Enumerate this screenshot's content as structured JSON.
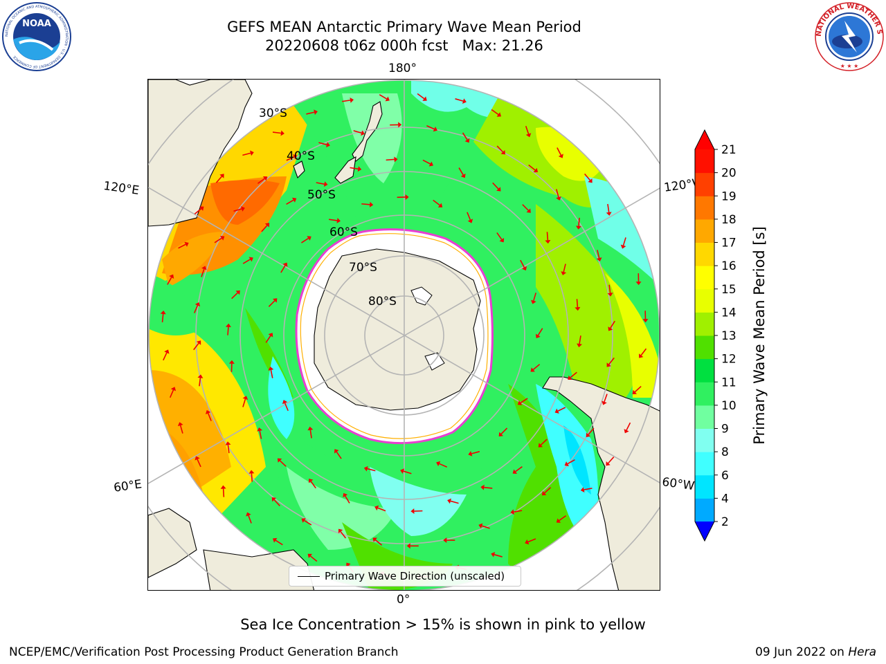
{
  "title": {
    "line1": "GEFS MEAN Antarctic Primary Wave Mean Period",
    "line2": "20220608 t06z 000h fcst   Max: 21.26"
  },
  "logos": {
    "left": "NOAA",
    "left_ring": "NATIONAL OCEANIC AND ATMOSPHERIC ADMINISTRATION · U.S. DEPARTMENT OF COMMERCE",
    "right_ring": "NATIONAL WEATHER SERVICE"
  },
  "map": {
    "projection": "south-polar-stereographic",
    "lon_labels": {
      "top": "180°",
      "bottom": "0°",
      "left_upper": "120°E",
      "left_lower": "60°E",
      "right_upper": "120°W",
      "right_lower": "60°W"
    },
    "lat_labels": [
      "30°S",
      "40°S",
      "50°S",
      "60°S",
      "70°S",
      "80°S"
    ],
    "legend": "Primary Wave Direction (unscaled)",
    "colors": {
      "land": "#efecdc",
      "ice": "#ffffff",
      "ice_edge": "#e83fd1",
      "arrow": "#ee0000",
      "grid": "#b4b4b4"
    }
  },
  "colorbar": {
    "label": "Primary Wave Mean Period [s]",
    "ticks": [
      "2",
      "4",
      "6",
      "8",
      "9",
      "10",
      "11",
      "12",
      "13",
      "14",
      "15",
      "16",
      "17",
      "18",
      "19",
      "20",
      "21"
    ],
    "colors": [
      "#0040ff",
      "#00aaff",
      "#00e5ff",
      "#40ffff",
      "#80fff0",
      "#70ffa0",
      "#30f060",
      "#00e040",
      "#50e000",
      "#a0f000",
      "#e8ff00",
      "#ffff00",
      "#ffd800",
      "#ffa800",
      "#ff7800",
      "#ff4000",
      "#ff1000"
    ],
    "under_color": "#0000ff",
    "over_color": "#ff0000"
  },
  "subtitle": "Sea Ice Concentration > 15% is shown in pink to yellow",
  "footer": {
    "left": "NCEP/EMC/Verification Post Processing Product Generation Branch",
    "right_prefix": "09 Jun 2022 on ",
    "right_italic": "Hera"
  }
}
